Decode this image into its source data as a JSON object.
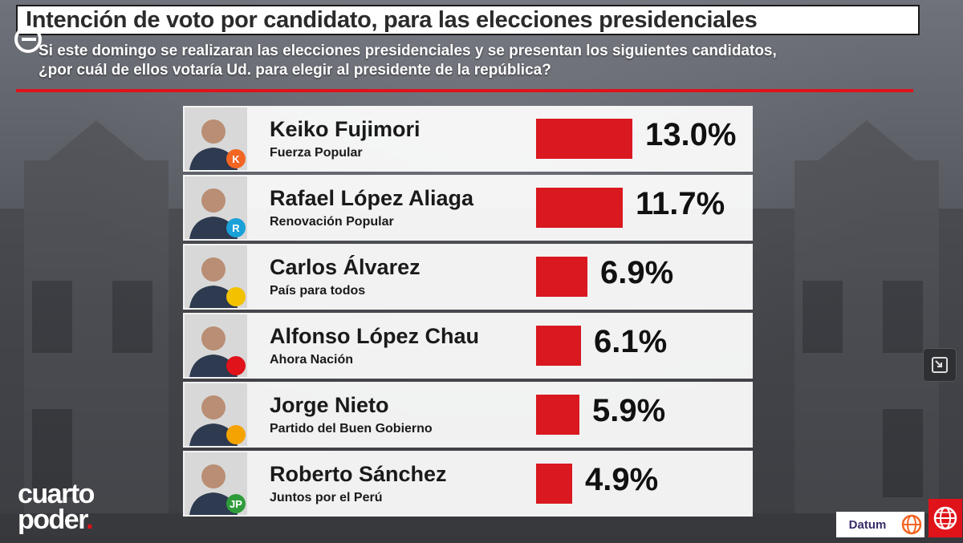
{
  "title": "Intención de voto por candidato, para las elecciones presidenciales",
  "subtitle_line1": "Si este domingo se realizaran las elecciones presidenciales y se presentan los siguientes candidatos,",
  "subtitle_line2": "¿por cuál de ellos votaría Ud. para elegir al presidente de la república?",
  "brand": {
    "line1": "cuarto",
    "line2": "poder",
    "dot": "."
  },
  "sponsors": {
    "datum": "Datum"
  },
  "colors": {
    "bar": "#d9181f",
    "accent": "#e0121a",
    "title_bg": "#ffffff"
  },
  "chart_data": {
    "type": "bar",
    "orientation": "horizontal",
    "categories": [
      "Keiko Fujimori",
      "Rafael López Aliaga",
      "Carlos Álvarez",
      "Alfonso López Chau",
      "Jorge Nieto",
      "Roberto Sánchez"
    ],
    "values": [
      13.0,
      11.7,
      6.9,
      6.1,
      5.9,
      4.9
    ],
    "unit": "%",
    "title": "Intención de voto por candidato, para las elecciones presidenciales",
    "candidates": [
      {
        "name": "Keiko Fujimori",
        "party": "Fuerza Popular",
        "value": 13.0,
        "label": "13.0%",
        "party_logo": "K",
        "logo_color": "#f26522"
      },
      {
        "name": "Rafael López Aliaga",
        "party": "Renovación Popular",
        "value": 11.7,
        "label": "11.7%",
        "party_logo": "R",
        "logo_color": "#1ba0d8"
      },
      {
        "name": "Carlos Álvarez",
        "party": "País para todos",
        "value": 6.9,
        "label": "6.9%",
        "party_logo": "",
        "logo_color": "#f2c200"
      },
      {
        "name": "Alfonso López Chau",
        "party": "Ahora Nación",
        "value": 6.1,
        "label": "6.1%",
        "party_logo": "",
        "logo_color": "#e0121a"
      },
      {
        "name": "Jorge Nieto",
        "party": "Partido del Buen Gobierno",
        "value": 5.9,
        "label": "5.9%",
        "party_logo": "",
        "logo_color": "#f5a300"
      },
      {
        "name": "Roberto Sánchez",
        "party": "Juntos por el  Perú",
        "value": 4.9,
        "label": "4.9%",
        "party_logo": "JP",
        "logo_color": "#2e9b3a"
      }
    ]
  }
}
